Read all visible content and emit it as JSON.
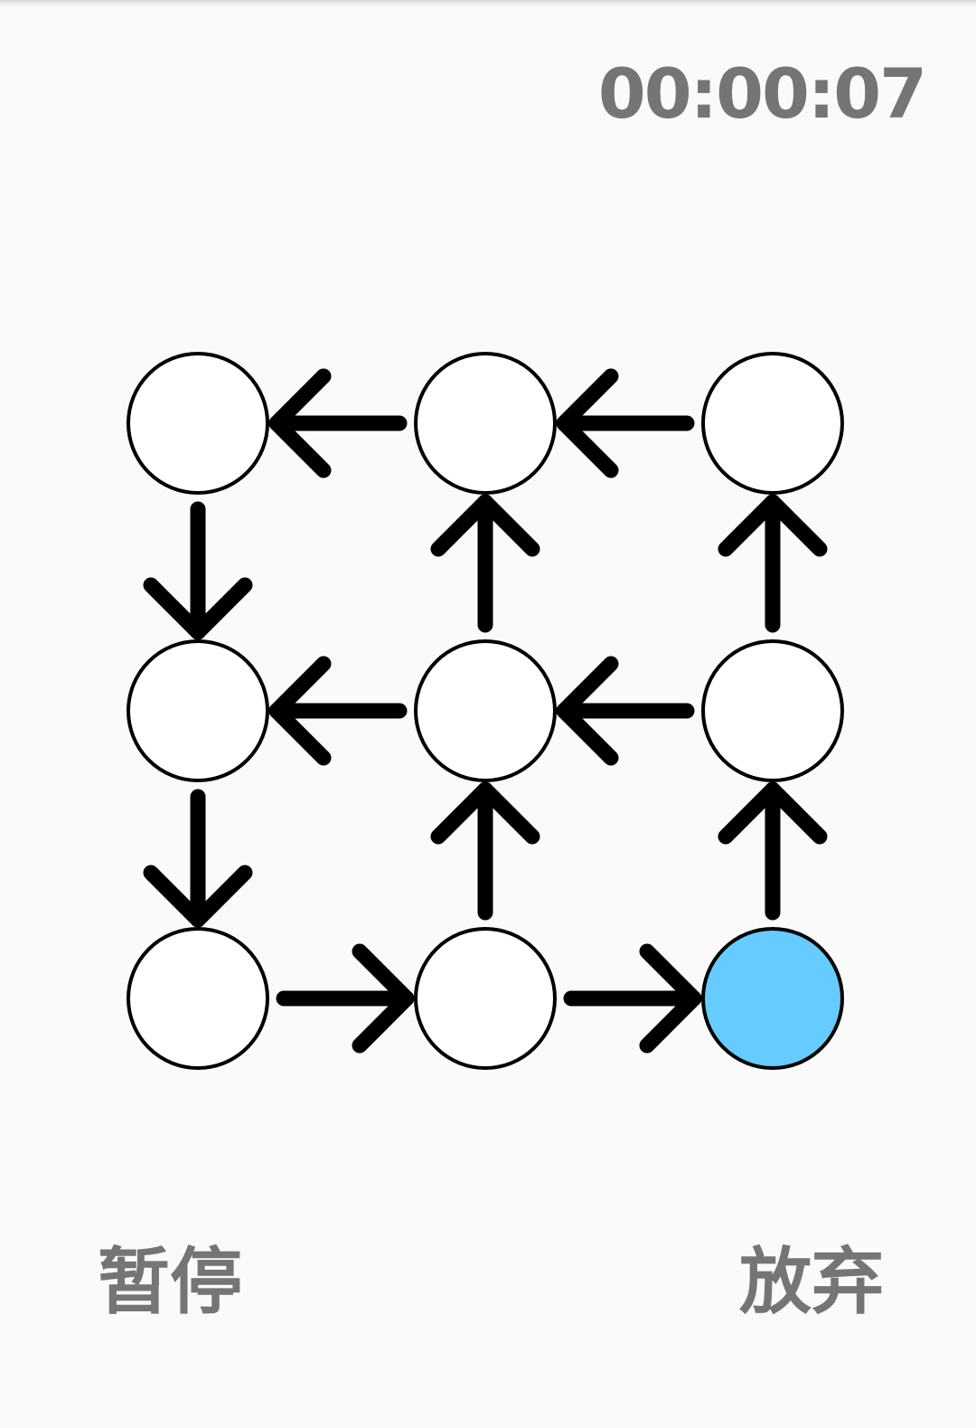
{
  "timer": "00:00:07",
  "buttons": {
    "pause": "暂停",
    "give_up": "放弃"
  },
  "colors": {
    "active_node": "#66ccff",
    "node_fill": "#ffffff",
    "stroke": "#000000",
    "text": "#757575"
  },
  "grid": {
    "rows": 3,
    "cols": 3,
    "active_node": [
      2,
      2
    ],
    "edges": [
      {
        "from": [
          0,
          2
        ],
        "to": [
          0,
          1
        ]
      },
      {
        "from": [
          0,
          1
        ],
        "to": [
          0,
          0
        ]
      },
      {
        "from": [
          0,
          0
        ],
        "to": [
          1,
          0
        ]
      },
      {
        "from": [
          1,
          1
        ],
        "to": [
          0,
          1
        ]
      },
      {
        "from": [
          1,
          2
        ],
        "to": [
          0,
          2
        ]
      },
      {
        "from": [
          1,
          2
        ],
        "to": [
          1,
          1
        ]
      },
      {
        "from": [
          1,
          1
        ],
        "to": [
          1,
          0
        ]
      },
      {
        "from": [
          1,
          0
        ],
        "to": [
          2,
          0
        ]
      },
      {
        "from": [
          2,
          1
        ],
        "to": [
          1,
          1
        ]
      },
      {
        "from": [
          2,
          2
        ],
        "to": [
          1,
          2
        ]
      },
      {
        "from": [
          2,
          0
        ],
        "to": [
          2,
          1
        ]
      },
      {
        "from": [
          2,
          1
        ],
        "to": [
          2,
          2
        ]
      }
    ]
  }
}
